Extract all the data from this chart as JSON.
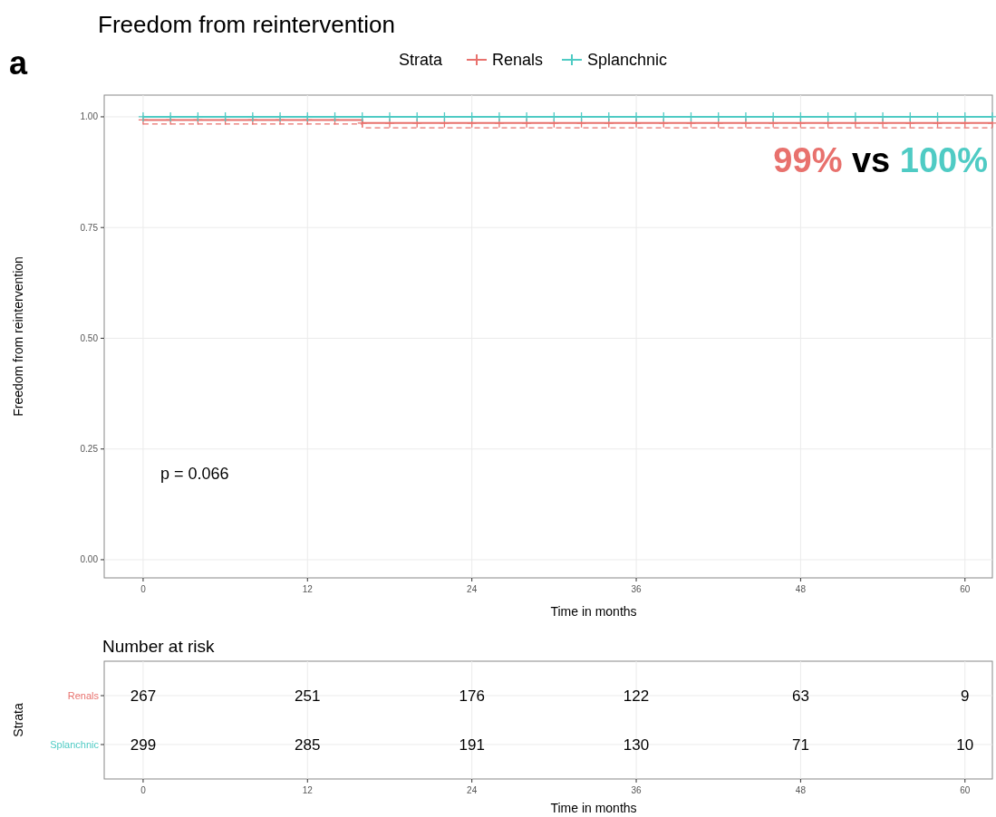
{
  "chart_data": [
    {
      "type": "step",
      "title": "Freedom from reintervention",
      "xlabel": "Time in months",
      "ylabel": "Freedom from reintervention",
      "legend_title": "Strata",
      "legend": "top",
      "marker": "cross",
      "grid": true,
      "x": [
        0,
        2,
        4,
        6,
        8,
        10,
        12,
        14,
        16,
        18,
        20,
        22,
        24,
        26,
        28,
        30,
        32,
        34,
        36,
        38,
        40,
        42,
        44,
        46,
        48,
        50,
        52,
        54,
        56,
        58,
        60,
        62
      ],
      "series": [
        {
          "name": "Renals",
          "color": "#e8716d",
          "values": [
            0.993,
            0.993,
            0.993,
            0.993,
            0.993,
            0.993,
            0.993,
            0.993,
            0.986,
            0.986,
            0.986,
            0.986,
            0.986,
            0.986,
            0.986,
            0.986,
            0.986,
            0.986,
            0.986,
            0.986,
            0.986,
            0.986,
            0.986,
            0.986,
            0.986,
            0.986,
            0.986,
            0.986,
            0.986,
            0.986,
            0.986,
            0.986
          ]
        },
        {
          "name": "Splanchnic",
          "color": "#4fcbc4",
          "values": [
            1,
            1,
            1,
            1,
            1,
            1,
            1,
            1,
            1,
            1,
            1,
            1,
            1,
            1,
            1,
            1,
            1,
            1,
            1,
            1,
            1,
            1,
            1,
            1,
            1,
            1,
            1,
            1,
            1,
            1,
            1,
            1
          ]
        },
        {
          "color": "#e8716d",
          "line_style": "dashed",
          "marker": "none",
          "x": [
            0,
            16,
            62
          ],
          "values": [
            0.984,
            0.975,
            0.975
          ]
        }
      ],
      "xlim": [
        -2.84,
        62
      ],
      "xticks": [
        0,
        12,
        24,
        36,
        48,
        60
      ],
      "ylim": [
        -0.041,
        1.049
      ],
      "yticks": [
        {
          "value": 0,
          "label": "0.00"
        },
        {
          "value": 0.25,
          "label": "0.25"
        },
        {
          "value": 0.5,
          "label": "0.50"
        },
        {
          "value": 0.75,
          "label": "0.75"
        },
        {
          "value": 1,
          "label": "1.00"
        }
      ],
      "annotations": [
        "a",
        "p = 0.066",
        "99%",
        "vs",
        "100%"
      ]
    },
    {
      "type": "heatmap",
      "title": "Number at risk",
      "xlabel": "Time in months",
      "ylabel": "Strata",
      "grid": true,
      "data_labels": true,
      "categories": [
        "0",
        "12",
        "24",
        "36",
        "48",
        "60"
      ],
      "y_categories": [
        "Renals",
        "Splanchnic"
      ],
      "cells": [
        [
          267,
          251,
          176,
          122,
          63,
          9
        ],
        [
          299,
          285,
          191,
          130,
          71,
          10
        ]
      ]
    }
  ]
}
